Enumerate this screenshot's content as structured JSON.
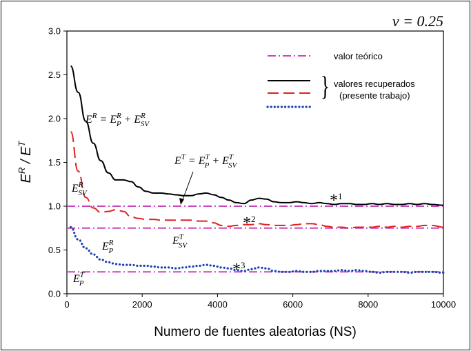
{
  "chart_data": {
    "type": "line",
    "title": "",
    "annotation_nu": "ν = 0.25",
    "xlabel": "Numero de fuentes aleatorias (NS)",
    "ylabel_main": "E",
    "ylabel_sup1": "R",
    "ylabel_mid": " / E",
    "ylabel_sup2": "T",
    "xlim": [
      0,
      10000
    ],
    "ylim": [
      0,
      3.0
    ],
    "x_ticks": [
      "0",
      "2000",
      "4000",
      "6000",
      "8000",
      "10000"
    ],
    "y_ticks": [
      "0.0",
      "0.5",
      "1.0",
      "1.5",
      "2.0",
      "2.5",
      "3.0"
    ],
    "grid": false,
    "legend": {
      "position": "top-right",
      "entries": [
        "valor teórico",
        "valores recuperados",
        "(presente trabajo)"
      ]
    },
    "colors": {
      "theory": "#cc44bb",
      "total": "#000000",
      "sv": "#e02020",
      "p": "#1f3fb0"
    },
    "theoretical_levels": [
      {
        "name": "E^T",
        "value": 1.0
      },
      {
        "name": "E_SV^T",
        "value": 0.75
      },
      {
        "name": "E_P^T",
        "value": 0.25
      }
    ],
    "series": [
      {
        "x": [
          100,
          300,
          500,
          700,
          900,
          1100,
          1300,
          1500,
          1700,
          1900,
          2100,
          2300,
          2500,
          2700,
          2900,
          3100,
          3300,
          3500,
          3700,
          3900,
          4100,
          4300,
          4500,
          4700,
          4900,
          5100,
          5300,
          5500,
          5700,
          5900,
          6100,
          6300,
          6500,
          6700,
          6900,
          7100,
          7300,
          7500,
          7700,
          7900,
          8100,
          8300,
          8500,
          8700,
          8900,
          9100,
          9300,
          9500,
          9700,
          10000
        ],
        "y": [
          2.6,
          2.3,
          1.97,
          1.72,
          1.52,
          1.38,
          1.3,
          1.3,
          1.28,
          1.22,
          1.17,
          1.15,
          1.15,
          1.14,
          1.13,
          1.12,
          1.12,
          1.14,
          1.15,
          1.13,
          1.1,
          1.07,
          1.04,
          1.03,
          1.07,
          1.09,
          1.08,
          1.05,
          1.04,
          1.04,
          1.05,
          1.04,
          1.03,
          1.04,
          1.03,
          1.02,
          1.03,
          1.03,
          1.02,
          1.02,
          1.03,
          1.02,
          1.03,
          1.02,
          1.02,
          1.03,
          1.02,
          1.03,
          1.02,
          1.01
        ]
      },
      {
        "x": [
          100,
          300,
          500,
          700,
          900,
          1100,
          1300,
          1500,
          1700,
          1900,
          2100,
          2300,
          2500,
          2700,
          2900,
          3100,
          3300,
          3500,
          3700,
          3900,
          4100,
          4300,
          4500,
          4700,
          4900,
          5100,
          5300,
          5500,
          5700,
          5900,
          6100,
          6300,
          6500,
          6700,
          6900,
          7100,
          7300,
          7500,
          7700,
          7900,
          8100,
          8300,
          8500,
          8700,
          8900,
          9100,
          9300,
          9500,
          9700,
          10000
        ],
        "y": [
          1.85,
          1.4,
          1.1,
          0.98,
          0.93,
          0.94,
          0.96,
          0.94,
          0.88,
          0.86,
          0.85,
          0.85,
          0.84,
          0.84,
          0.84,
          0.84,
          0.84,
          0.83,
          0.83,
          0.81,
          0.78,
          0.77,
          0.78,
          0.79,
          0.79,
          0.8,
          0.79,
          0.78,
          0.78,
          0.78,
          0.79,
          0.8,
          0.8,
          0.79,
          0.77,
          0.76,
          0.76,
          0.75,
          0.76,
          0.76,
          0.76,
          0.77,
          0.76,
          0.77,
          0.76,
          0.77,
          0.77,
          0.78,
          0.78,
          0.76
        ]
      },
      {
        "x": [
          100,
          300,
          500,
          700,
          900,
          1100,
          1300,
          1500,
          1700,
          1900,
          2100,
          2300,
          2500,
          2700,
          2900,
          3100,
          3300,
          3500,
          3700,
          3900,
          4100,
          4300,
          4500,
          4700,
          4900,
          5100,
          5300,
          5500,
          5700,
          5900,
          6100,
          6300,
          6500,
          6700,
          6900,
          7100,
          7300,
          7500,
          7700,
          7900,
          8100,
          8300,
          8500,
          8700,
          8900,
          9100,
          9300,
          9500,
          9700,
          10000
        ],
        "y": [
          0.76,
          0.62,
          0.52,
          0.45,
          0.39,
          0.36,
          0.34,
          0.33,
          0.33,
          0.32,
          0.32,
          0.31,
          0.3,
          0.3,
          0.29,
          0.3,
          0.31,
          0.32,
          0.33,
          0.32,
          0.3,
          0.29,
          0.27,
          0.26,
          0.28,
          0.3,
          0.29,
          0.26,
          0.25,
          0.25,
          0.26,
          0.25,
          0.25,
          0.26,
          0.26,
          0.26,
          0.27,
          0.26,
          0.27,
          0.26,
          0.25,
          0.24,
          0.25,
          0.25,
          0.25,
          0.24,
          0.25,
          0.25,
          0.25,
          0.24
        ]
      }
    ],
    "annotations": {
      "ER_main": "E",
      "ER_sup": "R",
      "ER_eq": " = E",
      "ER_p_sup": "R",
      "ER_p_sub": "P",
      "ER_plus": " + E",
      "ER_sv_sup": "R",
      "ER_sv_sub": "SV",
      "ET_main": "E",
      "ET_sup": "T",
      "ET_eq": " = E",
      "ET_p_sup": "T",
      "ET_p_sub": "P",
      "ET_plus": " + E",
      "ET_sv_sup": "T",
      "ET_sv_sub": "SV",
      "ESVR_main": "E",
      "ESVR_sup": "R",
      "ESVR_sub": "SV",
      "ESVT_main": "E",
      "ESVT_sup": "T",
      "ESVT_sub": "SV",
      "EPR_main": "E",
      "EPR_sup": "R",
      "EPR_sub": "P",
      "EPT_main": "E",
      "EPT_sup": "T",
      "EPT_sub": "P",
      "star": "*",
      "star1": "1",
      "star2": "2",
      "star3": "3"
    }
  }
}
